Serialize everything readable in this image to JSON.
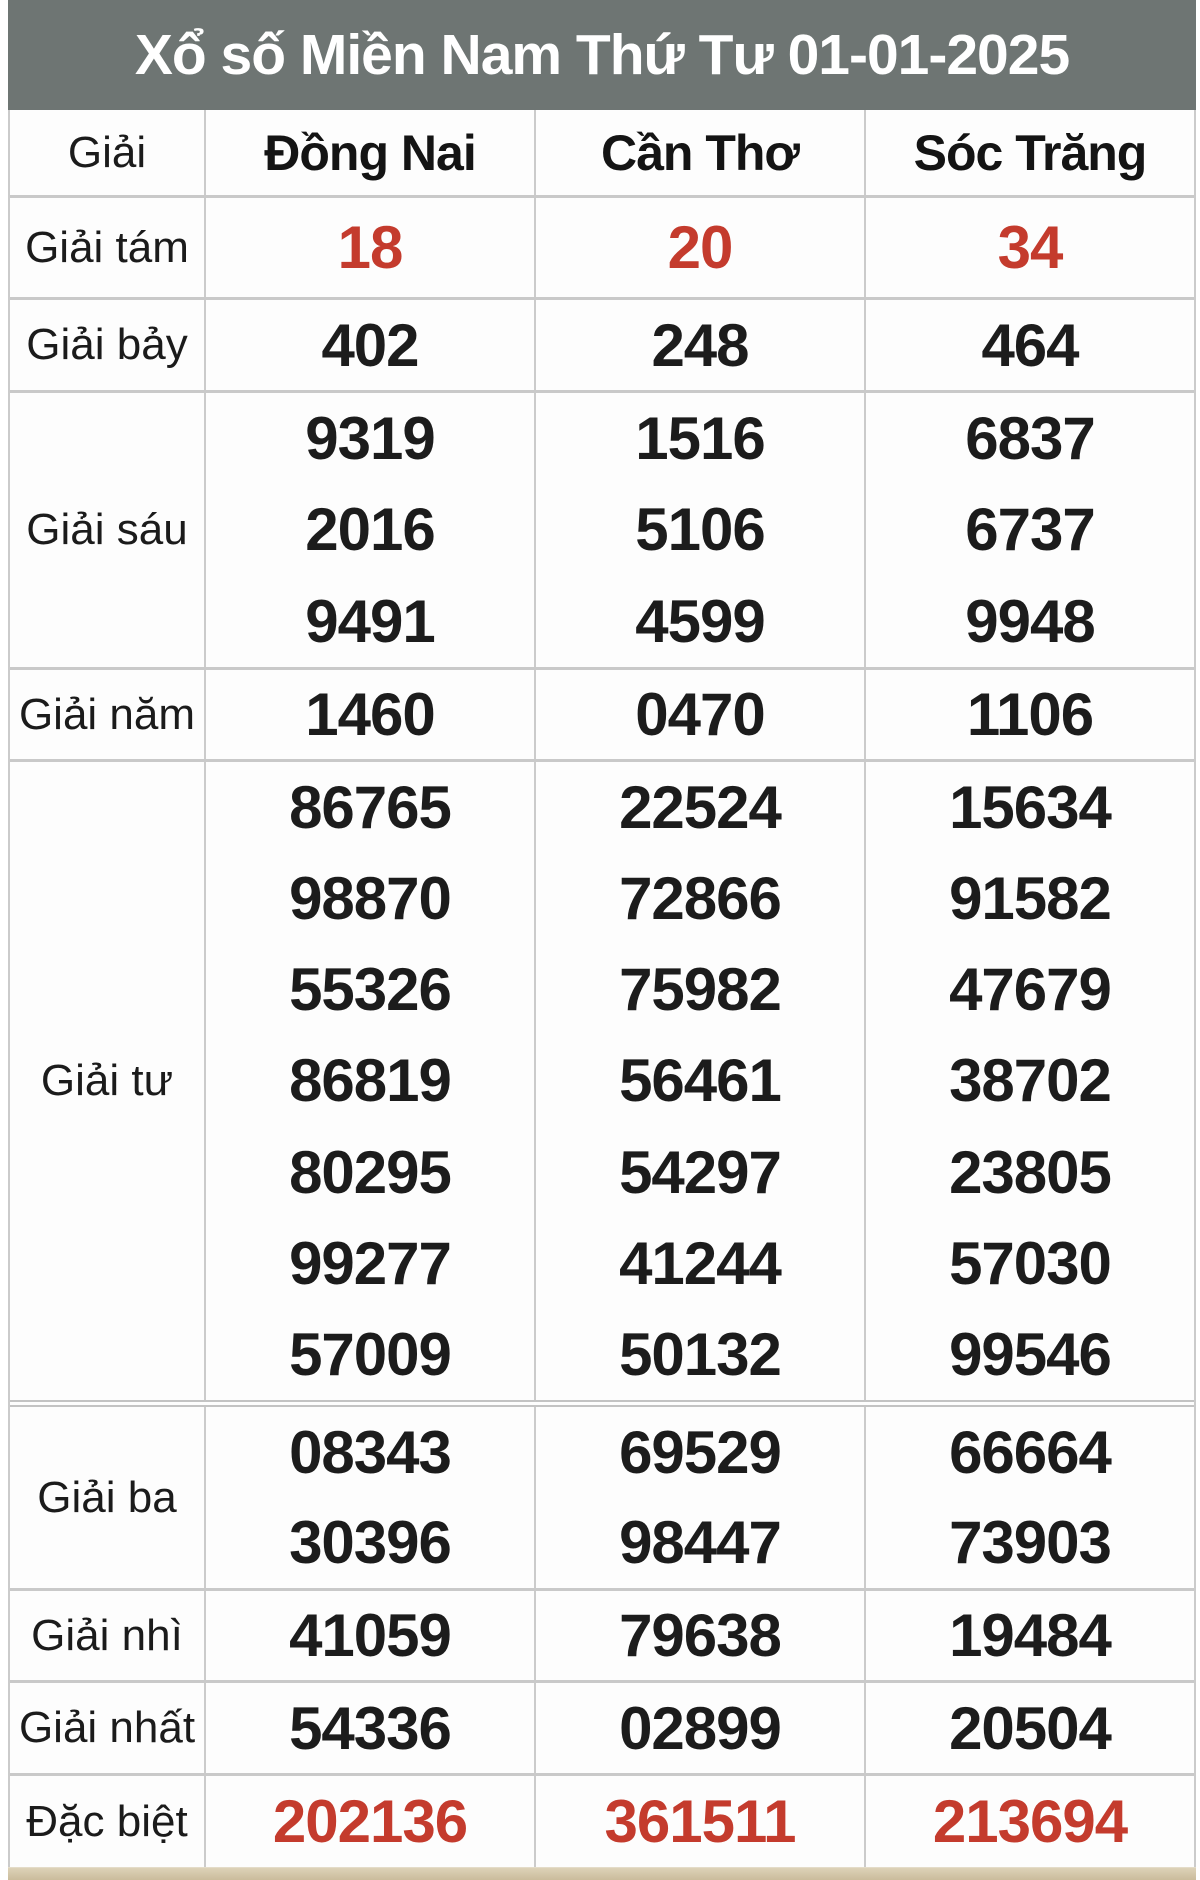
{
  "title": "Xổ số Miền Nam Thứ Tư 01-01-2025",
  "table": {
    "header": {
      "prize": "Giải",
      "provinces": [
        "Đồng Nai",
        "Cần Thơ",
        "Sóc Trăng"
      ]
    },
    "rows": [
      {
        "label": "Giải tám",
        "highlight": true,
        "cells": [
          [
            "18"
          ],
          [
            "20"
          ],
          [
            "34"
          ]
        ]
      },
      {
        "label": "Giải bảy",
        "highlight": false,
        "cells": [
          [
            "402"
          ],
          [
            "248"
          ],
          [
            "464"
          ]
        ]
      },
      {
        "label": "Giải sáu",
        "highlight": false,
        "cells": [
          [
            "9319",
            "2016",
            "9491"
          ],
          [
            "1516",
            "5106",
            "4599"
          ],
          [
            "6837",
            "6737",
            "9948"
          ]
        ]
      },
      {
        "label": "Giải năm",
        "highlight": false,
        "cells": [
          [
            "1460"
          ],
          [
            "0470"
          ],
          [
            "1106"
          ]
        ]
      },
      {
        "label": "Giải tư",
        "highlight": false,
        "cells": [
          [
            "86765",
            "98870",
            "55326",
            "86819",
            "80295",
            "99277",
            "57009"
          ],
          [
            "22524",
            "72866",
            "75982",
            "56461",
            "54297",
            "41244",
            "50132"
          ],
          [
            "15634",
            "91582",
            "47679",
            "38702",
            "23805",
            "57030",
            "99546"
          ]
        ]
      },
      {
        "label": "Giải ba",
        "highlight": false,
        "cells": [
          [
            "08343",
            "30396"
          ],
          [
            "69529",
            "98447"
          ],
          [
            "66664",
            "73903"
          ]
        ]
      },
      {
        "label": "Giải nhì",
        "highlight": false,
        "cells": [
          [
            "41059"
          ],
          [
            "79638"
          ],
          [
            "19484"
          ]
        ]
      },
      {
        "label": "Giải nhất",
        "highlight": false,
        "cells": [
          [
            "54336"
          ],
          [
            "02899"
          ],
          [
            "20504"
          ]
        ]
      },
      {
        "label": "Đặc biệt",
        "highlight": true,
        "cells": [
          [
            "202136"
          ],
          [
            "361511"
          ],
          [
            "213694"
          ]
        ]
      }
    ]
  },
  "colors": {
    "highlight_red": "#c43b2d",
    "title_bar_gray": "#6e7573",
    "border_gray": "#cbcbcb",
    "bottom_bar_tan": "#d3c5a7"
  }
}
